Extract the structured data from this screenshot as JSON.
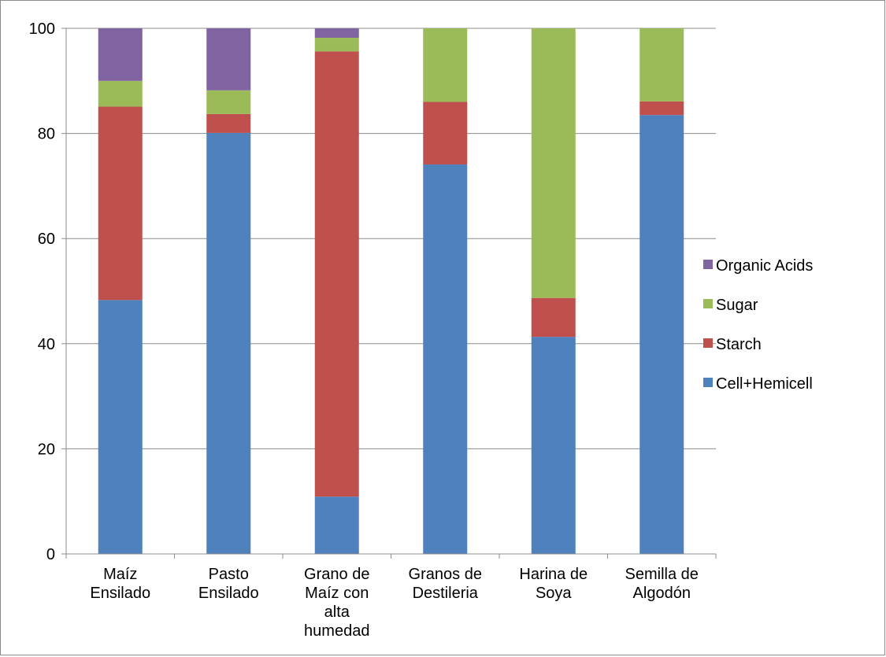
{
  "chart_data": {
    "type": "bar",
    "stacked": true,
    "categories": [
      [
        "Maíz",
        "Ensilado"
      ],
      [
        "Pasto",
        "Ensilado"
      ],
      [
        "Grano de",
        "Maíz con",
        "alta",
        "humedad"
      ],
      [
        "Granos de",
        "Destileria"
      ],
      [
        "Harina de",
        "Soya"
      ],
      [
        "Semilla de",
        "Algodón"
      ]
    ],
    "series": [
      {
        "name": "Cell+Hemicell",
        "color": "#4f81bd",
        "values": [
          48.3,
          80.1,
          10.9,
          74.1,
          41.3,
          83.5
        ]
      },
      {
        "name": "Starch",
        "color": "#c0504d",
        "values": [
          36.8,
          3.6,
          84.7,
          11.9,
          7.4,
          2.6
        ]
      },
      {
        "name": "Sugar",
        "color": "#9bbb59",
        "values": [
          4.9,
          4.5,
          2.6,
          14.0,
          51.3,
          13.9
        ]
      },
      {
        "name": "Organic Acids",
        "color": "#8064a2",
        "values": [
          10.0,
          11.8,
          1.8,
          0.0,
          0.0,
          0.0
        ]
      }
    ],
    "ylim": [
      0,
      100
    ],
    "yticks": [
      "0",
      "20",
      "40",
      "60",
      "80",
      "100"
    ],
    "grid": true,
    "legend": "right"
  }
}
